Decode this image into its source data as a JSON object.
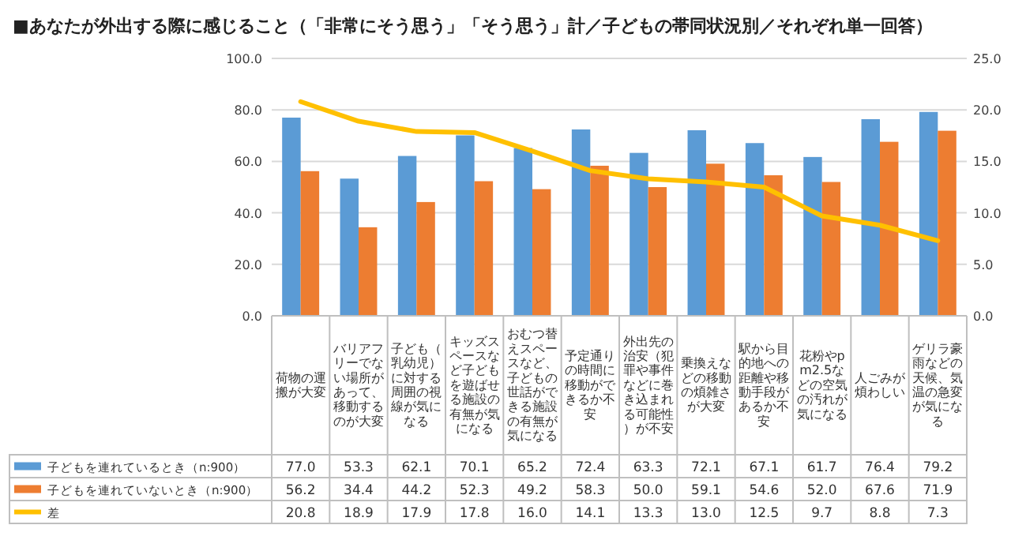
{
  "chart_data": {
    "type": "bar",
    "title": "■あなたが外出する際に感じること（「非常にそう思う」「そう思う」計／子どもの帯同状況別／それぞれ単一回答）",
    "categories": [
      "荷物の運搬が大変",
      "バリアフリーでない場所があって、移動するのが大変",
      "子ども（乳幼児）に対する周囲の視線が気になる",
      "キッズスペースなど子どもを遊ばせる施設の有無が気になる",
      "おむつ替えスペースなど、子どもの世話ができる施設の有無が気になる",
      "予定通りの時間に移動ができるか不安",
      "外出先の治安（犯罪や事件などに巻き込まれる可能性）が不安",
      "乗換えなどの移動の煩雑さが大変",
      "駅から目的地への距離や移動手段があるか不安",
      "花粉やpm2.5などの空気の汚れが気になる",
      "人ごみが煩わしい",
      "ゲリラ豪雨などの天候、気温の急変が気になる"
    ],
    "series": [
      {
        "name": "子どもを連れているとき（n:900）",
        "color": "#5b9bd5",
        "values": [
          77.0,
          53.3,
          62.1,
          70.1,
          65.2,
          72.4,
          63.3,
          72.1,
          67.1,
          61.7,
          76.4,
          79.2
        ],
        "value_labels": [
          "77.0",
          "53.3",
          "62.1",
          "70.1",
          "65.2",
          "72.4",
          "63.3",
          "72.1",
          "67.1",
          "61.7",
          "76.4",
          "79.2"
        ]
      },
      {
        "name": "子どもを連れていないとき（n:900）",
        "color": "#ed7d31",
        "values": [
          56.2,
          34.4,
          44.2,
          52.3,
          49.2,
          58.3,
          50.0,
          59.1,
          54.6,
          52.0,
          67.6,
          71.9
        ],
        "value_labels": [
          "56.2",
          "34.4",
          "44.2",
          "52.3",
          "49.2",
          "58.3",
          "50.0",
          "59.1",
          "54.6",
          "52.0",
          "67.6",
          "71.9"
        ]
      },
      {
        "name": "差",
        "type": "line",
        "axis": "y2",
        "color": "#ffc000",
        "values": [
          20.8,
          18.9,
          17.9,
          17.8,
          16.0,
          14.1,
          13.3,
          13.0,
          12.5,
          9.7,
          8.8,
          7.3
        ],
        "value_labels": [
          "20.8",
          "18.9",
          "17.9",
          "17.8",
          "16.0",
          "14.1",
          "13.3",
          "13.0",
          "12.5",
          "9.7",
          "8.8",
          "7.3"
        ]
      }
    ],
    "ylim": [
      0,
      100
    ],
    "yticks": [
      {
        "value": 0,
        "label": "0.0"
      },
      {
        "value": 20,
        "label": "20.0"
      },
      {
        "value": 40,
        "label": "40.0"
      },
      {
        "value": 60,
        "label": "60.0"
      },
      {
        "value": 80,
        "label": "80.0"
      },
      {
        "value": 100,
        "label": "100.0"
      }
    ],
    "y2lim": [
      0,
      25
    ],
    "y2ticks": [
      {
        "value": 0,
        "label": "0.0"
      },
      {
        "value": 5,
        "label": "5.0"
      },
      {
        "value": 10,
        "label": "10.0"
      },
      {
        "value": 15,
        "label": "15.0"
      },
      {
        "value": 20,
        "label": "20.0"
      },
      {
        "value": 25,
        "label": "25.0"
      }
    ],
    "grid": "y",
    "legend": "bottom"
  }
}
